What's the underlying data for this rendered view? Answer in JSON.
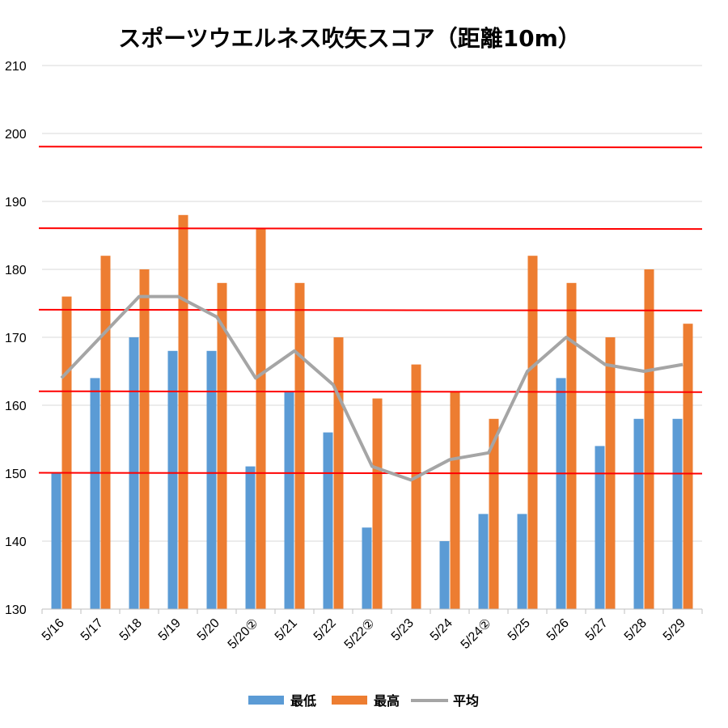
{
  "chart_data": {
    "type": "bar",
    "title": "スポーツウエルネス吹矢スコア（距離10m）",
    "categories": [
      "5/16",
      "5/17",
      "5/18",
      "5/19",
      "5/20",
      "5/20②",
      "5/21",
      "5/22",
      "5/22②",
      "5/23",
      "5/24",
      "5/24②",
      "5/25",
      "5/26",
      "5/27",
      "5/28",
      "5/29"
    ],
    "ylim": [
      130,
      210
    ],
    "yticks": [
      130,
      140,
      150,
      160,
      170,
      180,
      190,
      200,
      210
    ],
    "grid": true,
    "legend_position": "bottom",
    "series": [
      {
        "name": "最低",
        "kind": "bar",
        "color": "#5b9bd5",
        "values": [
          150,
          164,
          170,
          168,
          168,
          151,
          162,
          156,
          142,
          null,
          140,
          144,
          144,
          164,
          154,
          158,
          158
        ]
      },
      {
        "name": "最高",
        "kind": "bar",
        "color": "#ed7d31",
        "values": [
          176,
          182,
          180,
          188,
          178,
          186,
          178,
          170,
          161,
          166,
          162,
          158,
          182,
          178,
          170,
          180,
          172
        ]
      },
      {
        "name": "平均",
        "kind": "line",
        "color": "#a5a5a5",
        "values": [
          164,
          170,
          176,
          176,
          173,
          164,
          168,
          163,
          151,
          149,
          152,
          153,
          165,
          170,
          166,
          165,
          166
        ]
      }
    ],
    "reference_lines": [
      150,
      162,
      174,
      186,
      198
    ],
    "reference_color": "#ff0000"
  }
}
